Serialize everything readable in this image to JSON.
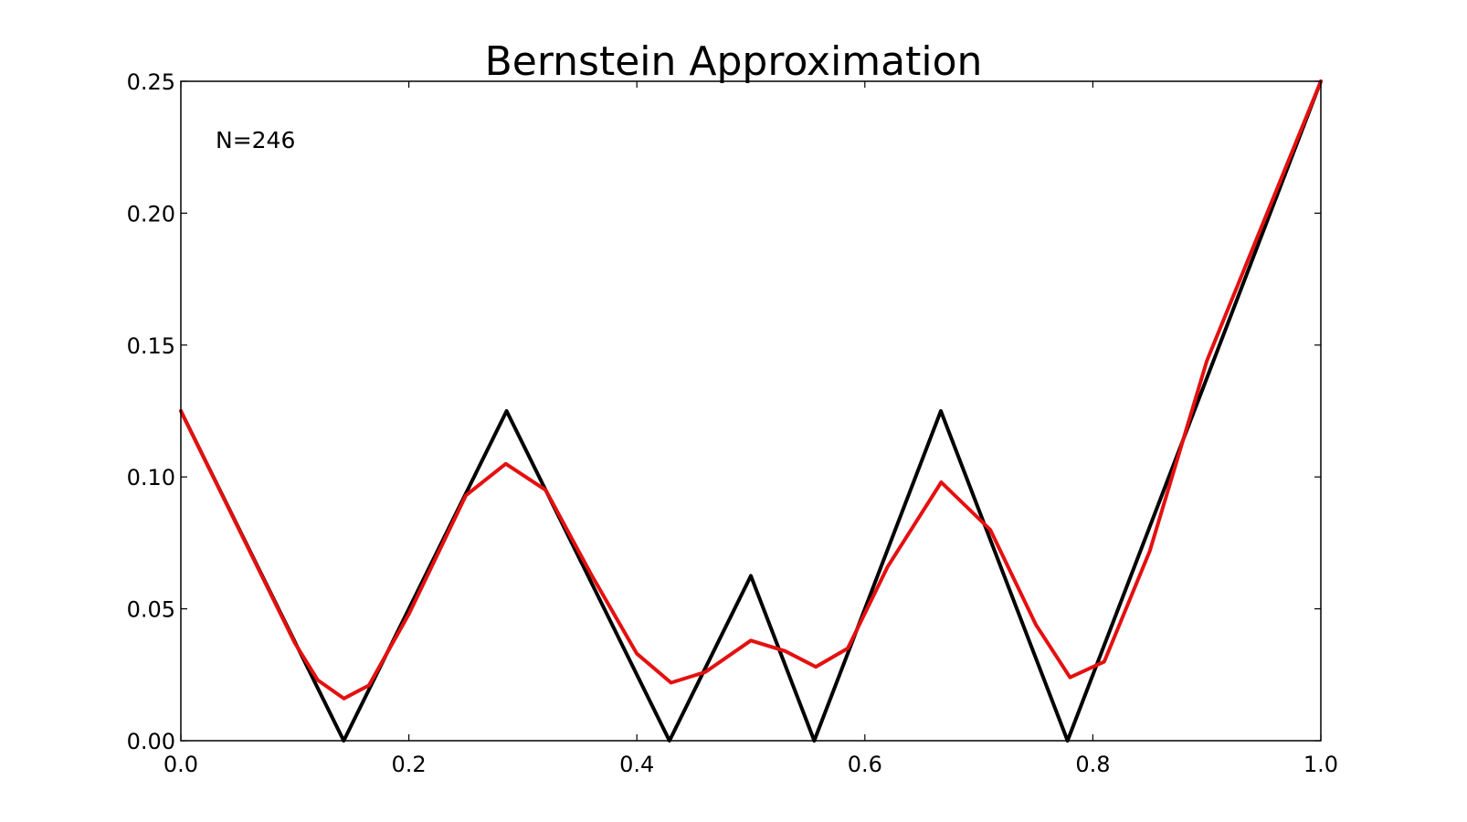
{
  "chart_data": {
    "type": "line",
    "title": "Bernstein Approximation",
    "xlabel": "",
    "ylabel": "",
    "xlim": [
      0.0,
      1.0
    ],
    "ylim": [
      0.0,
      0.25
    ],
    "x_ticks": [
      "0.0",
      "0.2",
      "0.4",
      "0.6",
      "0.8",
      "1.0"
    ],
    "y_ticks": [
      "0.00",
      "0.05",
      "0.10",
      "0.15",
      "0.20",
      "0.25"
    ],
    "grid": false,
    "legend": "none",
    "annotation": "N=246",
    "series": [
      {
        "color": "#000000",
        "x": [
          0.0,
          0.1429,
          0.2857,
          0.4286,
          0.5,
          0.5556,
          0.6667,
          0.7778,
          1.0
        ],
        "y": [
          0.125,
          0.0,
          0.125,
          0.0,
          0.0625,
          0.0,
          0.125,
          0.0,
          0.25
        ]
      },
      {
        "color": "#e41010",
        "x": [
          0.0,
          0.05,
          0.1,
          0.12,
          0.143,
          0.165,
          0.2,
          0.25,
          0.285,
          0.32,
          0.36,
          0.4,
          0.43,
          0.46,
          0.5,
          0.53,
          0.557,
          0.585,
          0.62,
          0.667,
          0.71,
          0.75,
          0.78,
          0.81,
          0.85,
          0.9,
          0.95,
          1.0
        ],
        "y": [
          0.125,
          0.081,
          0.037,
          0.023,
          0.016,
          0.021,
          0.048,
          0.093,
          0.105,
          0.095,
          0.063,
          0.033,
          0.022,
          0.026,
          0.038,
          0.034,
          0.028,
          0.035,
          0.066,
          0.098,
          0.08,
          0.044,
          0.024,
          0.03,
          0.072,
          0.144,
          0.197,
          0.25
        ]
      }
    ]
  }
}
